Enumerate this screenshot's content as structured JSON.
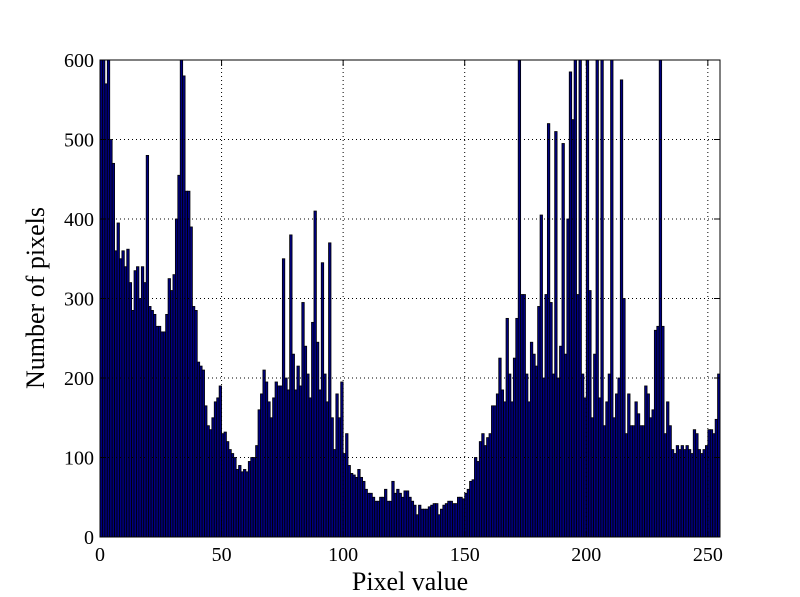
{
  "chart_data": {
    "type": "histogram",
    "x_label": "Pixel value",
    "y_label": "Number of pixels",
    "color": "#000080",
    "edgecolor": "#000000",
    "grid": true,
    "xlim": [
      0,
      255
    ],
    "ylim": [
      0,
      600
    ],
    "xticks": [
      0,
      50,
      100,
      150,
      200,
      250
    ],
    "yticks": [
      0,
      100,
      200,
      300,
      400,
      500,
      600
    ],
    "bins": [
      0,
      1,
      2,
      3,
      4,
      5,
      6,
      7,
      8,
      9,
      10,
      11,
      12,
      13,
      14,
      15,
      16,
      17,
      18,
      19,
      20,
      21,
      22,
      23,
      24,
      25,
      26,
      27,
      28,
      29,
      30,
      31,
      32,
      33,
      34,
      35,
      36,
      37,
      38,
      39,
      40,
      41,
      42,
      43,
      44,
      45,
      46,
      47,
      48,
      49,
      50,
      51,
      52,
      53,
      54,
      55,
      56,
      57,
      58,
      59,
      60,
      61,
      62,
      63,
      64,
      65,
      66,
      67,
      68,
      69,
      70,
      71,
      72,
      73,
      74,
      75,
      76,
      77,
      78,
      79,
      80,
      81,
      82,
      83,
      84,
      85,
      86,
      87,
      88,
      89,
      90,
      91,
      92,
      93,
      94,
      95,
      96,
      97,
      98,
      99,
      100,
      101,
      102,
      103,
      104,
      105,
      106,
      107,
      108,
      109,
      110,
      111,
      112,
      113,
      114,
      115,
      116,
      117,
      118,
      119,
      120,
      121,
      122,
      123,
      124,
      125,
      126,
      127,
      128,
      129,
      130,
      131,
      132,
      133,
      134,
      135,
      136,
      137,
      138,
      139,
      140,
      141,
      142,
      143,
      144,
      145,
      146,
      147,
      148,
      149,
      150,
      151,
      152,
      153,
      154,
      155,
      156,
      157,
      158,
      159,
      160,
      161,
      162,
      163,
      164,
      165,
      166,
      167,
      168,
      169,
      170,
      171,
      172,
      173,
      174,
      175,
      176,
      177,
      178,
      179,
      180,
      181,
      182,
      183,
      184,
      185,
      186,
      187,
      188,
      189,
      190,
      191,
      192,
      193,
      194,
      195,
      196,
      197,
      198,
      199,
      200,
      201,
      202,
      203,
      204,
      205,
      206,
      207,
      208,
      209,
      210,
      211,
      212,
      213,
      214,
      215,
      216,
      217,
      218,
      219,
      220,
      221,
      222,
      223,
      224,
      225,
      226,
      227,
      228,
      229,
      230,
      231,
      232,
      233,
      234,
      235,
      236,
      237,
      238,
      239,
      240,
      241,
      242,
      243,
      244,
      245,
      246,
      247,
      248,
      249,
      250,
      251,
      252,
      253,
      254,
      255
    ],
    "counts": [
      600,
      600,
      570,
      600,
      500,
      470,
      360,
      395,
      350,
      360,
      340,
      362,
      320,
      285,
      335,
      340,
      300,
      340,
      320,
      480,
      290,
      285,
      280,
      265,
      265,
      258,
      258,
      280,
      325,
      310,
      330,
      400,
      455,
      600,
      580,
      435,
      435,
      390,
      290,
      285,
      220,
      215,
      210,
      165,
      140,
      135,
      150,
      170,
      175,
      190,
      130,
      132,
      120,
      110,
      105,
      100,
      85,
      90,
      82,
      85,
      82,
      95,
      100,
      100,
      115,
      160,
      180,
      210,
      195,
      170,
      150,
      175,
      195,
      190,
      190,
      350,
      200,
      185,
      380,
      230,
      185,
      215,
      190,
      295,
      240,
      205,
      175,
      270,
      410,
      245,
      185,
      345,
      205,
      170,
      370,
      150,
      110,
      180,
      150,
      195,
      105,
      130,
      90,
      80,
      78,
      75,
      85,
      75,
      70,
      60,
      55,
      55,
      50,
      45,
      45,
      50,
      50,
      60,
      45,
      45,
      70,
      55,
      60,
      55,
      50,
      58,
      58,
      50,
      45,
      40,
      28,
      40,
      35,
      35,
      35,
      38,
      40,
      42,
      42,
      28,
      35,
      40,
      42,
      45,
      45,
      42,
      42,
      50,
      50,
      48,
      55,
      60,
      70,
      72,
      100,
      95,
      120,
      130,
      115,
      125,
      130,
      165,
      165,
      180,
      225,
      185,
      170,
      275,
      205,
      170,
      225,
      275,
      600,
      305,
      305,
      205,
      170,
      245,
      230,
      215,
      290,
      405,
      200,
      305,
      520,
      295,
      205,
      510,
      200,
      240,
      495,
      230,
      400,
      585,
      525,
      600,
      305,
      600,
      205,
      175,
      600,
      310,
      150,
      230,
      600,
      175,
      600,
      140,
      170,
      205,
      600,
      150,
      180,
      200,
      575,
      300,
      130,
      180,
      140,
      140,
      170,
      155,
      140,
      140,
      190,
      180,
      150,
      160,
      260,
      265,
      600,
      265,
      130,
      170,
      140,
      110,
      105,
      115,
      110,
      115,
      110,
      115,
      110,
      105,
      135,
      130,
      110,
      105,
      110,
      115,
      135,
      135,
      130,
      148,
      205
    ]
  }
}
